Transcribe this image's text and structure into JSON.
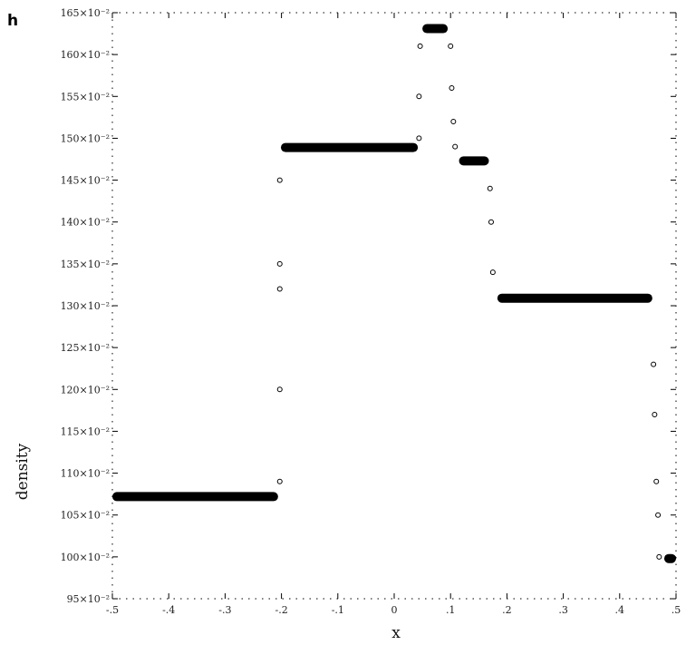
{
  "panel_label": "h",
  "chart_data": {
    "type": "scatter",
    "xlabel": "x",
    "ylabel": "density",
    "xlim": [
      -0.5,
      0.5
    ],
    "ylim": [
      0.95,
      1.65
    ],
    "x_ticks": [
      {
        "value": -0.5,
        "label": "-.5"
      },
      {
        "value": -0.4,
        "label": "-.4"
      },
      {
        "value": -0.3,
        "label": "-.3"
      },
      {
        "value": -0.2,
        "label": "-.2"
      },
      {
        "value": -0.1,
        "label": "-.1"
      },
      {
        "value": 0.0,
        "label": "0"
      },
      {
        "value": 0.1,
        "label": ".1"
      },
      {
        "value": 0.2,
        "label": ".2"
      },
      {
        "value": 0.3,
        "label": ".3"
      },
      {
        "value": 0.4,
        "label": ".4"
      },
      {
        "value": 0.5,
        "label": ".5"
      }
    ],
    "y_ticks": [
      {
        "value": 0.95,
        "label": "95×10⁻²"
      },
      {
        "value": 1.0,
        "label": "100×10⁻²"
      },
      {
        "value": 1.05,
        "label": "105×10⁻²"
      },
      {
        "value": 1.1,
        "label": "110×10⁻²"
      },
      {
        "value": 1.15,
        "label": "115×10⁻²"
      },
      {
        "value": 1.2,
        "label": "120×10⁻²"
      },
      {
        "value": 1.25,
        "label": "125×10⁻²"
      },
      {
        "value": 1.3,
        "label": "130×10⁻²"
      },
      {
        "value": 1.35,
        "label": "135×10⁻²"
      },
      {
        "value": 1.4,
        "label": "140×10⁻²"
      },
      {
        "value": 1.45,
        "label": "145×10⁻²"
      },
      {
        "value": 1.5,
        "label": "150×10⁻²"
      },
      {
        "value": 1.55,
        "label": "155×10⁻²"
      },
      {
        "value": 1.6,
        "label": "160×10⁻²"
      },
      {
        "value": 1.65,
        "label": "165×10⁻²"
      }
    ],
    "grid": false,
    "series": [
      {
        "marker": "circle",
        "color": "#000000",
        "segments": [
          {
            "x_from": -0.5,
            "x_to": -0.206,
            "y": 1.072
          },
          {
            "x_from": -0.201,
            "x_to": 0.042,
            "y": 1.489
          },
          {
            "x_from": 0.05,
            "x_to": 0.095,
            "y": 1.631
          },
          {
            "x_from": 0.115,
            "x_to": 0.168,
            "y": 1.473
          },
          {
            "x_from": 0.183,
            "x_to": 0.458,
            "y": 1.309
          },
          {
            "x_from": 0.479,
            "x_to": 0.5,
            "y": 0.998
          }
        ],
        "transition_points": [
          [
            -0.203,
            1.09
          ],
          [
            -0.203,
            1.2
          ],
          [
            -0.203,
            1.32
          ],
          [
            -0.203,
            1.35
          ],
          [
            -0.203,
            1.45
          ],
          [
            0.044,
            1.5
          ],
          [
            0.044,
            1.55
          ],
          [
            0.046,
            1.61
          ],
          [
            0.1,
            1.61
          ],
          [
            0.102,
            1.56
          ],
          [
            0.105,
            1.52
          ],
          [
            0.108,
            1.49
          ],
          [
            0.17,
            1.44
          ],
          [
            0.172,
            1.4
          ],
          [
            0.175,
            1.34
          ],
          [
            0.46,
            1.23
          ],
          [
            0.462,
            1.17
          ],
          [
            0.465,
            1.09
          ],
          [
            0.468,
            1.05
          ],
          [
            0.47,
            1.0
          ]
        ]
      }
    ]
  }
}
